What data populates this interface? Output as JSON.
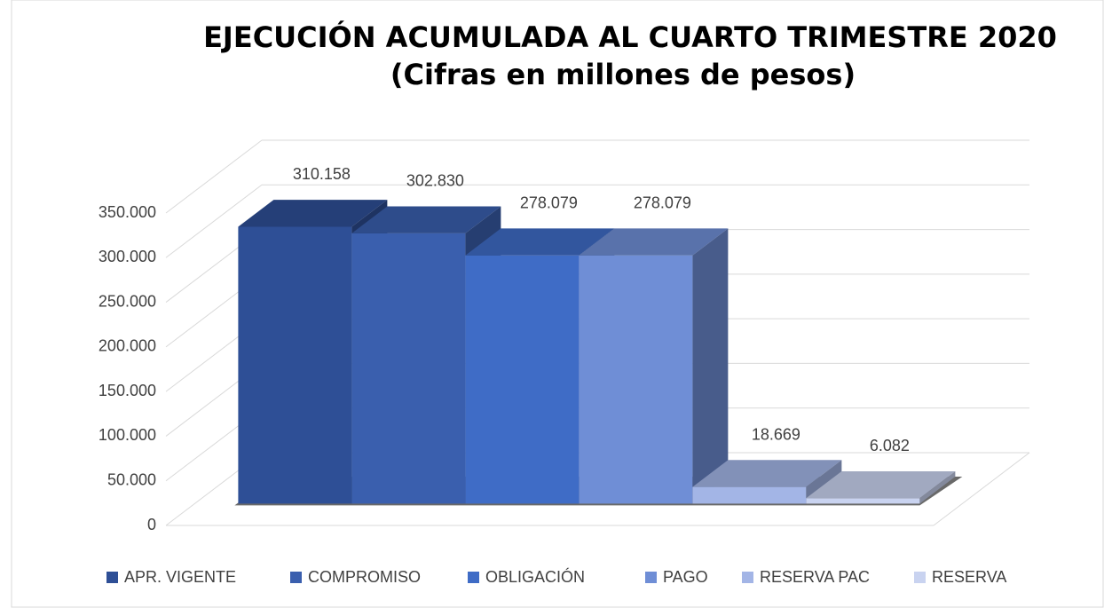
{
  "chart_data": {
    "type": "bar3d",
    "title": "EJECUCIÓN ACUMULADA AL CUARTO TRIMESTRE 2020",
    "subtitle": "(Cifras en millones de pesos)",
    "series": [
      {
        "name": "APR. VIGENTE",
        "color": "#2e4f96",
        "values": [
          310158
        ],
        "value_labels": [
          "310.158"
        ]
      },
      {
        "name": "COMPROMISO",
        "color": "#3a5fae",
        "values": [
          302830
        ],
        "value_labels": [
          "302.830"
        ]
      },
      {
        "name": "OBLIGACIÓN",
        "color": "#3f6cc6",
        "values": [
          278079
        ],
        "value_labels": [
          "278.079"
        ]
      },
      {
        "name": "PAGO",
        "color": "#6f8ed6",
        "values": [
          278079
        ],
        "value_labels": [
          "278.079"
        ]
      },
      {
        "name": "RESERVA PAC",
        "color": "#a3b5e6",
        "values": [
          18669
        ],
        "value_labels": [
          "18.669"
        ]
      },
      {
        "name": "RESERVA",
        "color": "#c9d3f0",
        "values": [
          6082
        ],
        "value_labels": [
          "6.082"
        ]
      }
    ],
    "ylim": [
      0,
      350000
    ],
    "yticks": [
      0,
      {
        "value": 50000,
        "label": "50.000"
      },
      {
        "value": 100000,
        "label": "100.000"
      },
      {
        "value": 150000,
        "label": "150.000"
      },
      {
        "value": 200000,
        "label": "200.000"
      },
      {
        "value": 250000,
        "label": "250.000"
      },
      {
        "value": 300000,
        "label": "300.000"
      },
      {
        "value": 350000,
        "label": "350.000"
      }
    ],
    "grid": true
  }
}
